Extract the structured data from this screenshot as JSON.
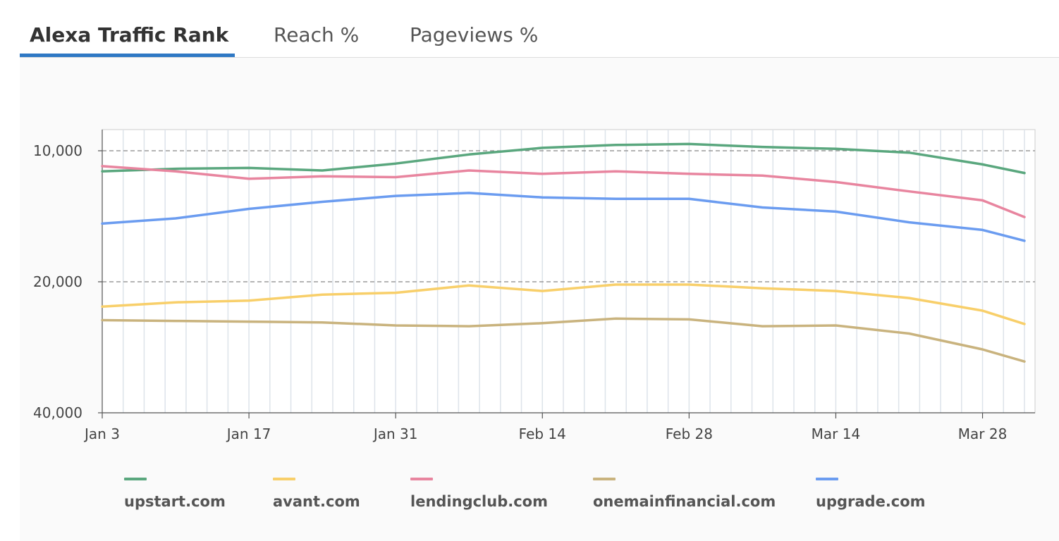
{
  "tabs": [
    {
      "label": "Alexa Traffic Rank",
      "active": true
    },
    {
      "label": "Reach %",
      "active": false
    },
    {
      "label": "Pageviews %",
      "active": false
    }
  ],
  "chart_data": {
    "type": "line",
    "title": "",
    "xlabel": "",
    "ylabel": "",
    "y_scale": "log",
    "y_inverted": true,
    "grid": true,
    "legend_position": "bottom",
    "x_start": "Jan 3",
    "x_ticks": [
      "Jan 3",
      "Jan 17",
      "Jan 31",
      "Feb 14",
      "Feb 28",
      "Mar 14",
      "Mar 28"
    ],
    "y_ticks": [
      "10,000",
      "20,000",
      "40,000"
    ],
    "x": [
      0,
      7,
      14,
      21,
      28,
      35,
      42,
      49,
      56,
      63,
      70,
      77,
      84,
      88
    ],
    "series": [
      {
        "name": "upstart.com",
        "color": "#5aa77e",
        "values": [
          11150,
          11000,
          10950,
          11100,
          10700,
          10200,
          9850,
          9700,
          9650,
          9800,
          9900,
          10100,
          10750,
          11250
        ]
      },
      {
        "name": "avant.com",
        "color": "#f8cf6a",
        "values": [
          22800,
          22300,
          22100,
          21400,
          21200,
          20400,
          21000,
          20300,
          20300,
          20700,
          21000,
          21800,
          23300,
          25000
        ]
      },
      {
        "name": "lendingclub.com",
        "color": "#e8859f",
        "values": [
          10850,
          11150,
          11600,
          11450,
          11500,
          11100,
          11300,
          11150,
          11300,
          11400,
          11800,
          12400,
          13000,
          14200
        ]
      },
      {
        "name": "onemainfinancial.com",
        "color": "#c9b37e",
        "values": [
          24500,
          24600,
          24700,
          24800,
          25200,
          25300,
          24900,
          24300,
          24400,
          25300,
          25200,
          26300,
          28600,
          30500
        ]
      },
      {
        "name": "upgrade.com",
        "color": "#6b9cf0",
        "values": [
          14700,
          14300,
          13600,
          13100,
          12700,
          12500,
          12800,
          12900,
          12900,
          13500,
          13800,
          14600,
          15200,
          16100
        ]
      }
    ]
  }
}
